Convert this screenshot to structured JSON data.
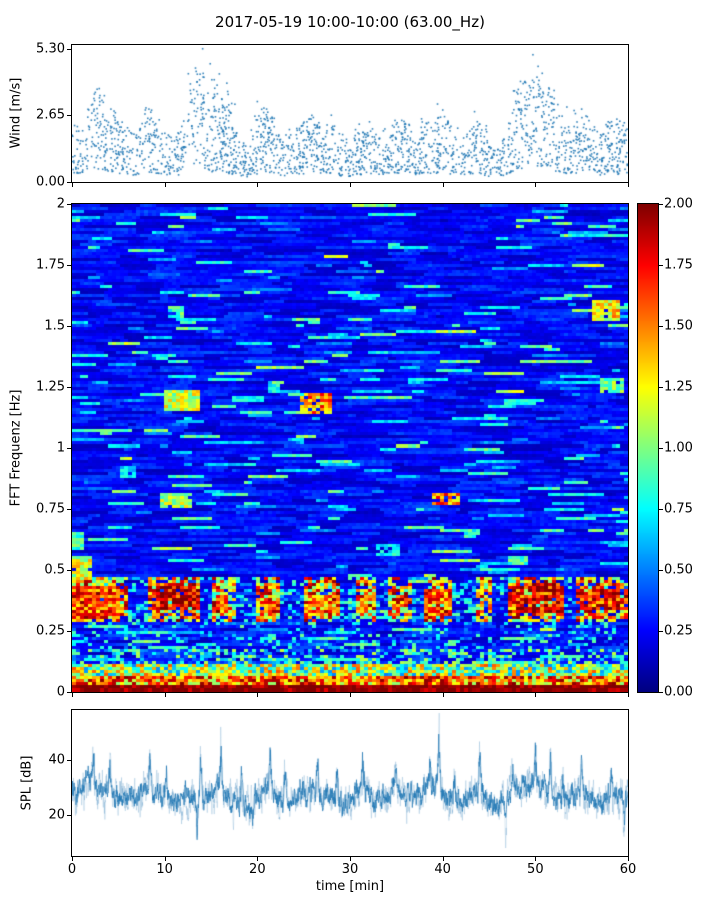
{
  "title": "2017-05-19 10:00-10:00 (63.00_Hz)",
  "seed": 20170519,
  "chart_data": [
    {
      "id": "wind",
      "type": "scatter",
      "ylabel": "Wind [m/s]",
      "xlim": [
        0,
        60
      ],
      "ylim": [
        0,
        5.45
      ],
      "yticks": [
        {
          "label": "5.30",
          "value": 5.3
        },
        {
          "label": "2.65",
          "value": 2.65
        },
        {
          "label": "0.00",
          "value": 0.0
        }
      ],
      "marker_color": "#1f77b4",
      "n_points": 1900,
      "mean_per_min": [
        1.4,
        1.2,
        1.8,
        2.1,
        1.7,
        1.4,
        1.2,
        1.0,
        1.6,
        1.3,
        1.1,
        0.9,
        1.3,
        2.2,
        2.5,
        1.6,
        1.9,
        1.3,
        1.0,
        0.8,
        1.3,
        1.7,
        1.2,
        0.9,
        1.1,
        1.3,
        1.5,
        1.2,
        1.3,
        1.0,
        0.9,
        1.1,
        1.3,
        1.0,
        1.2,
        1.4,
        1.3,
        1.1,
        1.5,
        1.2,
        1.6,
        1.1,
        0.9,
        1.2,
        1.4,
        0.8,
        0.7,
        1.3,
        2.0,
        2.3,
        2.2,
        2.4,
        1.8,
        1.4,
        1.2,
        1.6,
        1.3,
        1.0,
        1.4,
        1.2,
        1.2
      ],
      "peaks": [
        {
          "x": 3,
          "y": 3.2
        },
        {
          "x": 4.2,
          "y": 2.9
        },
        {
          "x": 8.3,
          "y": 2.9
        },
        {
          "x": 13.4,
          "y": 4.4
        },
        {
          "x": 14.1,
          "y": 5.3
        },
        {
          "x": 15.9,
          "y": 4.3
        },
        {
          "x": 16.8,
          "y": 3.6
        },
        {
          "x": 20,
          "y": 3.2
        },
        {
          "x": 21,
          "y": 2.9
        },
        {
          "x": 25.8,
          "y": 2.5
        },
        {
          "x": 31,
          "y": 2.3
        },
        {
          "x": 36,
          "y": 2.3
        },
        {
          "x": 40.2,
          "y": 2.6
        },
        {
          "x": 44,
          "y": 2.3
        },
        {
          "x": 48.4,
          "y": 4.0
        },
        {
          "x": 50.3,
          "y": 4.6
        },
        {
          "x": 51.5,
          "y": 3.7
        },
        {
          "x": 55,
          "y": 2.9
        },
        {
          "x": 58.8,
          "y": 2.5
        }
      ]
    },
    {
      "id": "spectrogram",
      "type": "heatmap",
      "ylabel": "FFT Frequenz [Hz]",
      "xlim": [
        0,
        60
      ],
      "ylim": [
        0,
        2
      ],
      "clim": [
        0,
        2
      ],
      "colormap": "jet",
      "grid": [
        139,
        162
      ],
      "yticks": [
        {
          "label": "2",
          "value": 2
        },
        {
          "label": "1.75",
          "value": 1.75
        },
        {
          "label": "1.5",
          "value": 1.5
        },
        {
          "label": "1.25",
          "value": 1.25
        },
        {
          "label": "1",
          "value": 1
        },
        {
          "label": "0.75",
          "value": 0.75
        },
        {
          "label": "0.5",
          "value": 0.5
        },
        {
          "label": "0.25",
          "value": 0.25
        },
        {
          "label": "0",
          "value": 0
        }
      ],
      "colorbar_ticks": [
        {
          "label": "2.00",
          "value": 2
        },
        {
          "label": "1.75",
          "value": 1.75
        },
        {
          "label": "1.50",
          "value": 1.5
        },
        {
          "label": "1.25",
          "value": 1.25
        },
        {
          "label": "1.00",
          "value": 1
        },
        {
          "label": "0.75",
          "value": 0.75
        },
        {
          "label": "0.50",
          "value": 0.5
        },
        {
          "label": "0.25",
          "value": 0.25
        },
        {
          "label": "0.00",
          "value": 0
        }
      ],
      "hot_band": {
        "f": [
          0.29,
          0.47
        ],
        "intervals": [
          [
            0,
            6
          ],
          [
            8,
            14
          ],
          [
            15,
            17.5
          ],
          [
            20,
            22.5
          ],
          [
            25,
            29
          ],
          [
            30.5,
            33
          ],
          [
            34,
            36.5
          ],
          [
            38,
            41
          ],
          [
            43.5,
            45.5
          ],
          [
            47,
            53
          ],
          [
            54.5,
            60
          ]
        ]
      },
      "features": [
        {
          "t": [
            9,
            14
          ],
          "f": [
            0.33,
            0.44
          ],
          "v": 1.9
        },
        {
          "t": [
            0,
            5
          ],
          "f": [
            0.3,
            0.43
          ],
          "v": 1.6
        },
        {
          "t": [
            15.5,
            17
          ],
          "f": [
            0.32,
            0.4
          ],
          "v": 1.7
        },
        {
          "t": [
            20,
            22
          ],
          "f": [
            0.3,
            0.38
          ],
          "v": 1.3
        },
        {
          "t": [
            25,
            29
          ],
          "f": [
            0.31,
            0.4
          ],
          "v": 1.4
        },
        {
          "t": [
            31,
            33
          ],
          "f": [
            0.32,
            0.4
          ],
          "v": 1.3
        },
        {
          "t": [
            34.5,
            36
          ],
          "f": [
            0.33,
            0.4
          ],
          "v": 1.2
        },
        {
          "t": [
            38,
            41
          ],
          "f": [
            0.32,
            0.42
          ],
          "v": 1.6
        },
        {
          "t": [
            47,
            53
          ],
          "f": [
            0.32,
            0.44
          ],
          "v": 1.8
        },
        {
          "t": [
            55,
            60
          ],
          "f": [
            0.33,
            0.42
          ],
          "v": 1.7
        },
        {
          "t": [
            0,
            2.2
          ],
          "f": [
            0.45,
            0.56
          ],
          "v": 1.2
        },
        {
          "t": [
            0,
            1.5
          ],
          "f": [
            0.58,
            0.66
          ],
          "v": 0.9
        },
        {
          "t": [
            10,
            14
          ],
          "f": [
            1.15,
            1.24
          ],
          "v": 1.2
        },
        {
          "t": [
            24.5,
            28
          ],
          "f": [
            1.14,
            1.22
          ],
          "v": 1.5
        },
        {
          "t": [
            9.5,
            13
          ],
          "f": [
            0.75,
            0.82
          ],
          "v": 1.1
        },
        {
          "t": [
            39,
            42
          ],
          "f": [
            0.76,
            0.81
          ],
          "v": 1.5
        },
        {
          "t": [
            56,
            59
          ],
          "f": [
            1.52,
            1.6
          ],
          "v": 1.3
        },
        {
          "t": [
            10.5,
            12.2
          ],
          "f": [
            1.53,
            1.58
          ],
          "v": 0.9
        },
        {
          "t": [
            57,
            59.5
          ],
          "f": [
            1.22,
            1.28
          ],
          "v": 1.0
        },
        {
          "t": [
            21,
            22.3
          ],
          "f": [
            1.22,
            1.27
          ],
          "v": 0.8
        },
        {
          "t": [
            47,
            49
          ],
          "f": [
            0.52,
            0.56
          ],
          "v": 0.9
        },
        {
          "t": [
            33,
            35.2
          ],
          "f": [
            0.56,
            0.6
          ],
          "v": 0.8
        },
        {
          "t": [
            42.5,
            44
          ],
          "f": [
            0.63,
            0.67
          ],
          "v": 0.8
        },
        {
          "t": [
            5,
            7
          ],
          "f": [
            0.88,
            0.92
          ],
          "v": 0.7
        }
      ]
    },
    {
      "id": "spl",
      "type": "line",
      "ylabel": "SPL [dB]",
      "xlabel": "time [min]",
      "xlim": [
        0,
        60
      ],
      "ylim": [
        5,
        58
      ],
      "yticks": [
        {
          "label": "40",
          "value": 40
        },
        {
          "label": "20",
          "value": 20
        }
      ],
      "xticks": [
        {
          "label": "0",
          "value": 0
        },
        {
          "label": "10",
          "value": 10
        },
        {
          "label": "20",
          "value": 20
        },
        {
          "label": "30",
          "value": 30
        },
        {
          "label": "40",
          "value": 40
        },
        {
          "label": "50",
          "value": 50
        },
        {
          "label": "60",
          "value": 60
        }
      ],
      "color": "#1f77b4",
      "mean_per_min": [
        27,
        29,
        33,
        30,
        28,
        27,
        26,
        25,
        31,
        28,
        26,
        25,
        26,
        27,
        25,
        28,
        31,
        26,
        24,
        23,
        27,
        30,
        27,
        25,
        26,
        28,
        29,
        26,
        28,
        25,
        24,
        29,
        27,
        25,
        27,
        29,
        27,
        25,
        29,
        31,
        28,
        25,
        24,
        27,
        28,
        24,
        22,
        27,
        29,
        31,
        30,
        29,
        27,
        25,
        27,
        28,
        26,
        24,
        27,
        26,
        27
      ],
      "peaks": [
        {
          "x": 2.3,
          "y": 47
        },
        {
          "x": 4.1,
          "y": 40
        },
        {
          "x": 8.4,
          "y": 44
        },
        {
          "x": 10.2,
          "y": 38
        },
        {
          "x": 13.9,
          "y": 40
        },
        {
          "x": 16.1,
          "y": 46
        },
        {
          "x": 18.3,
          "y": 38
        },
        {
          "x": 21.4,
          "y": 44
        },
        {
          "x": 23.0,
          "y": 40
        },
        {
          "x": 26.5,
          "y": 41
        },
        {
          "x": 28.6,
          "y": 38
        },
        {
          "x": 31.4,
          "y": 46
        },
        {
          "x": 34.9,
          "y": 42
        },
        {
          "x": 38.6,
          "y": 44
        },
        {
          "x": 39.6,
          "y": 53
        },
        {
          "x": 41.3,
          "y": 39
        },
        {
          "x": 44.0,
          "y": 42
        },
        {
          "x": 47.6,
          "y": 41
        },
        {
          "x": 50.0,
          "y": 46
        },
        {
          "x": 51.6,
          "y": 43
        },
        {
          "x": 53.0,
          "y": 39
        },
        {
          "x": 55.0,
          "y": 41
        },
        {
          "x": 58.2,
          "y": 39
        }
      ],
      "dips": [
        {
          "x": 13.5,
          "y": 11
        },
        {
          "x": 19.5,
          "y": 15
        },
        {
          "x": 46.8,
          "y": 13
        },
        {
          "x": 59.6,
          "y": 14
        }
      ]
    }
  ]
}
